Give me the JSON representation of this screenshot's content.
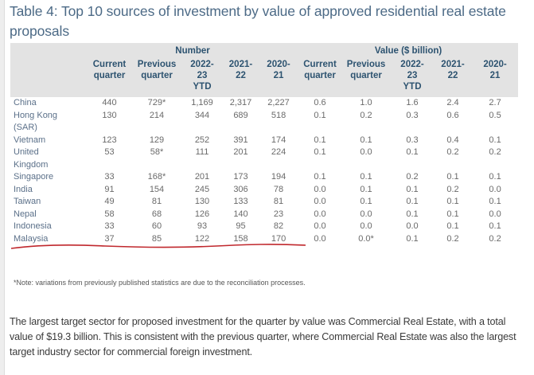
{
  "title": "Table 4: Top 10 sources of investment by value of approved residential real estate proposals",
  "table": {
    "group_headers": {
      "number": "Number",
      "value": "Value ($ billion)"
    },
    "columns": {
      "number": [
        "Current quarter",
        "Previous quarter",
        "2022-23 YTD",
        "2021-22",
        "2020-21"
      ],
      "value": [
        "Current quarter",
        "Previous quarter",
        "2022-23 YTD",
        "2021-22",
        "2020-21"
      ]
    },
    "column_lines": {
      "c1": [
        "Current",
        "quarter"
      ],
      "c2": [
        "Previous",
        "quarter"
      ],
      "c3": [
        "2022-",
        "23",
        "YTD"
      ],
      "c4": [
        "2021-",
        "22"
      ],
      "c5": [
        "2020-",
        "21"
      ]
    },
    "rows": [
      {
        "country": "China",
        "number": [
          "440",
          "729*",
          "1,169",
          "2,317",
          "2,227"
        ],
        "value": [
          "0.6",
          "1.0",
          "1.6",
          "2.4",
          "2.7"
        ]
      },
      {
        "country": "Hong Kong (SAR)",
        "number": [
          "130",
          "214",
          "344",
          "689",
          "518"
        ],
        "value": [
          "0.1",
          "0.2",
          "0.3",
          "0.6",
          "0.5"
        ]
      },
      {
        "country": "Vietnam",
        "number": [
          "123",
          "129",
          "252",
          "391",
          "174"
        ],
        "value": [
          "0.1",
          "0.1",
          "0.3",
          "0.4",
          "0.1"
        ]
      },
      {
        "country": "United Kingdom",
        "number": [
          "53",
          "58*",
          "111",
          "201",
          "224"
        ],
        "value": [
          "0.1",
          "0.0",
          "0.1",
          "0.2",
          "0.2"
        ]
      },
      {
        "country": "Singapore",
        "number": [
          "33",
          "168*",
          "201",
          "173",
          "194"
        ],
        "value": [
          "0.1",
          "0.1",
          "0.2",
          "0.1",
          "0.1"
        ]
      },
      {
        "country": "India",
        "number": [
          "91",
          "154",
          "245",
          "306",
          "78"
        ],
        "value": [
          "0.0",
          "0.1",
          "0.1",
          "0.2",
          "0.0"
        ]
      },
      {
        "country": "Taiwan",
        "number": [
          "49",
          "81",
          "130",
          "133",
          "81"
        ],
        "value": [
          "0.0",
          "0.1",
          "0.1",
          "0.1",
          "0.1"
        ]
      },
      {
        "country": "Nepal",
        "number": [
          "58",
          "68",
          "126",
          "140",
          "23"
        ],
        "value": [
          "0.0",
          "0.0",
          "0.1",
          "0.1",
          "0.0"
        ],
        "highlighted": true
      },
      {
        "country": "Indonesia",
        "number": [
          "33",
          "60",
          "93",
          "95",
          "82"
        ],
        "value": [
          "0.0",
          "0.0",
          "0.0",
          "0.1",
          "0.1"
        ]
      },
      {
        "country": "Malaysia",
        "number": [
          "37",
          "85",
          "122",
          "158",
          "170"
        ],
        "value": [
          "0.0",
          "0.0*",
          "0.1",
          "0.2",
          "0.2"
        ]
      }
    ],
    "note": "*Note: variations from previously published statistics are due to the reconciliation processes."
  },
  "paragraph": "The largest target sector for proposed investment for the quarter by value was Commercial Real Estate, with a total value of $19.3 billion. This is consistent with the previous quarter, where Commercial Real Estate was also the largest target industry sector for commercial foreign investment.",
  "annotation": {
    "color": "#c0282d",
    "target_row": "Nepal"
  },
  "colors": {
    "header_text": "#2d5370",
    "header_band": "#e3e3e3",
    "title_text": "#4c6a86"
  }
}
